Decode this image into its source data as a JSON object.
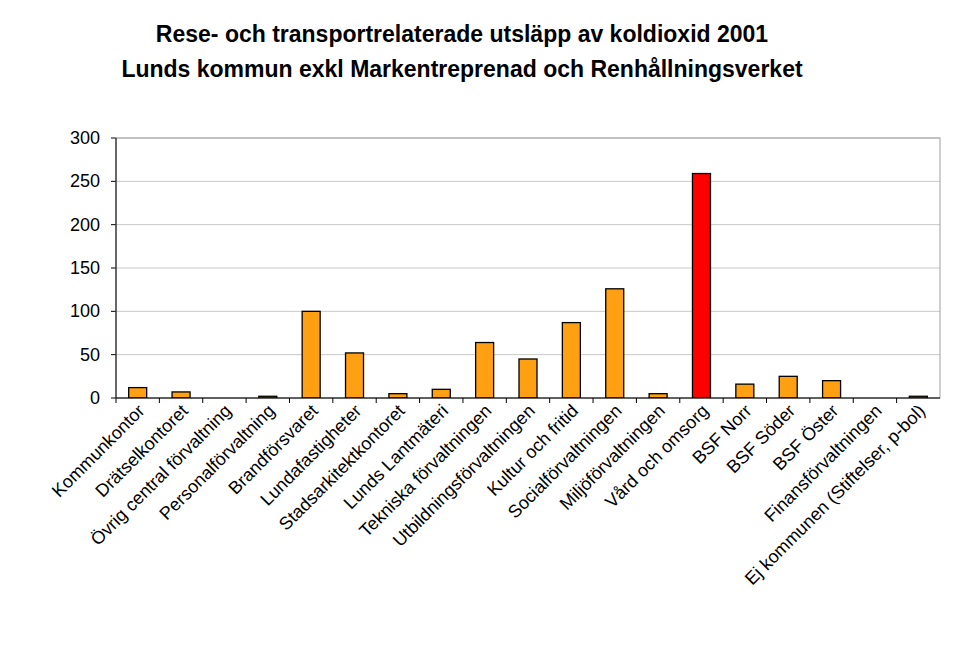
{
  "chart_data": {
    "type": "bar",
    "title": "Rese- och transportrelaterade utsläpp av koldioxid 2001",
    "subtitle": "Lunds kommun exkl Markentreprenad och Renhållningsverket",
    "categories": [
      "Kommunkontor",
      "Drätselkontoret",
      "Övrig central förvaltning",
      "Personalförvaltning",
      "Brandförsvaret",
      "Lundafastigheter",
      "Stadsarkitektkontoret",
      "Lunds Lantmäteri",
      "Tekniska förvaltningen",
      "Utbildningsförvaltningen",
      "Kultur och fritid",
      "Socialförvaltningen",
      "Miljöförvaltningen",
      "Vård och omsorg",
      "BSF Norr",
      "BSF Söder",
      "BSF Öster",
      "Finansförvaltningen",
      "Ej kommunen (Stiftelser, p-bol)"
    ],
    "values": [
      12,
      7,
      0,
      2,
      100,
      52,
      5,
      10,
      64,
      45,
      87,
      126,
      5,
      259,
      16,
      25,
      20,
      0,
      2
    ],
    "colors": [
      "#ffa012",
      "#ffa012",
      "#ffa012",
      "#ffa012",
      "#ffa012",
      "#ffa012",
      "#ffa012",
      "#ffa012",
      "#ffa012",
      "#ffa012",
      "#ffa012",
      "#ffa012",
      "#ffa012",
      "#ff0000",
      "#ffa012",
      "#ffa012",
      "#ffa012",
      "#ffa012",
      "#ffa012"
    ],
    "ylim": [
      0,
      300
    ],
    "yticks": [
      0,
      50,
      100,
      150,
      200,
      250,
      300
    ],
    "grid": true
  }
}
